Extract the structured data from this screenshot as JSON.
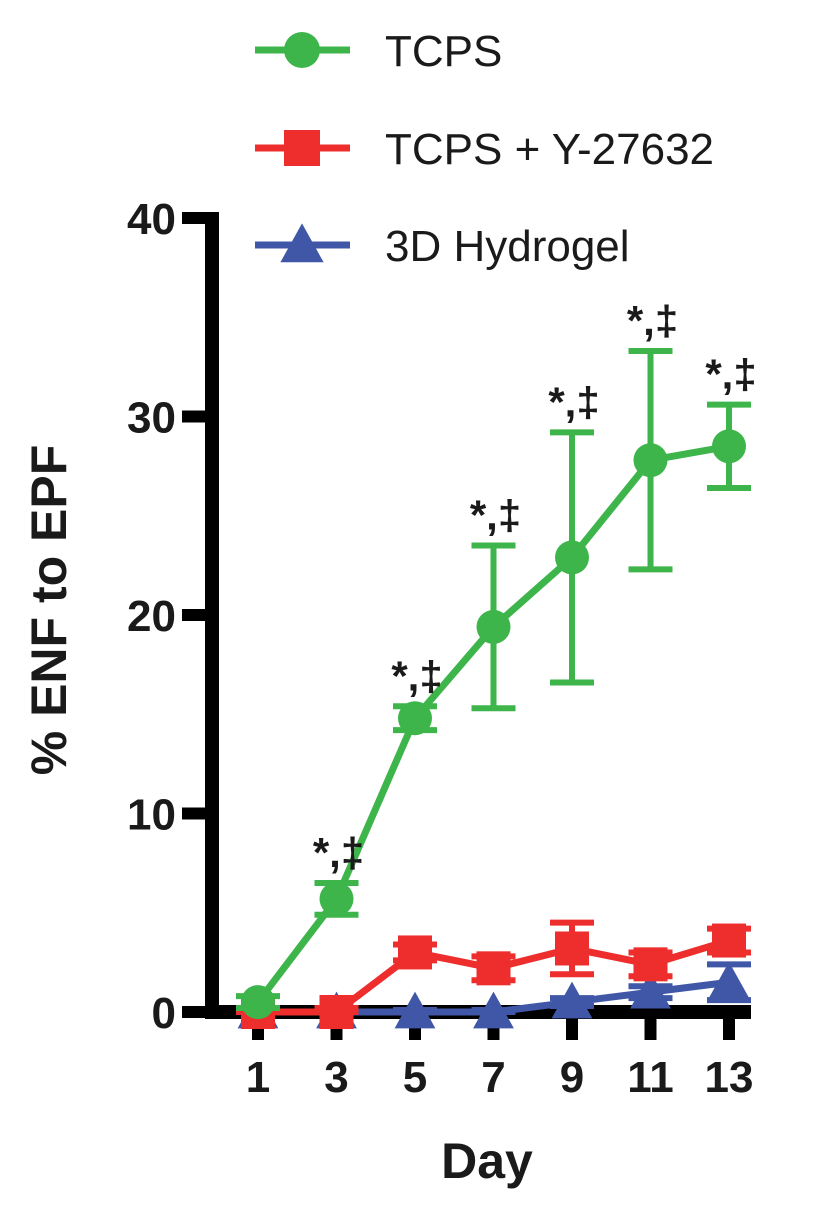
{
  "chart_data": {
    "type": "line",
    "title": "",
    "xlabel": "Day",
    "ylabel": "% ENF to EPF",
    "x": [
      1,
      3,
      5,
      7,
      9,
      11,
      13
    ],
    "x_tick_labels": [
      "1",
      "3",
      "5",
      "7",
      "9",
      "11",
      "13"
    ],
    "ylim": [
      0,
      40
    ],
    "y_ticks": [
      0,
      10,
      20,
      30,
      40
    ],
    "y_tick_labels": [
      "0",
      "10",
      "20",
      "30",
      "40"
    ],
    "grid": false,
    "legend_position": "top",
    "series": [
      {
        "name": "TCPS",
        "color": "#3db54a",
        "marker": "circle",
        "values": [
          0.5,
          5.7,
          14.8,
          19.4,
          22.9,
          27.8,
          28.5
        ],
        "error": [
          0.3,
          0.8,
          0.6,
          4.1,
          6.3,
          5.5,
          2.1
        ]
      },
      {
        "name": "TCPS + Y-27632",
        "color": "#ee2d2d",
        "marker": "square",
        "values": [
          0.0,
          0.0,
          3.0,
          2.2,
          3.2,
          2.4,
          3.6
        ],
        "error": [
          0.2,
          0.2,
          0.4,
          0.6,
          1.3,
          0.6,
          0.6
        ]
      },
      {
        "name": "3D Hydrogel",
        "color": "#3f57a6",
        "marker": "triangle",
        "values": [
          0.0,
          0.0,
          0.0,
          0.0,
          0.5,
          1.0,
          1.5
        ],
        "error": [
          0.1,
          0.1,
          0.1,
          0.1,
          0.2,
          0.3,
          0.9
        ]
      }
    ],
    "annotations": [
      {
        "x": 3,
        "y": 6.5,
        "text": "*,‡"
      },
      {
        "x": 5,
        "y": 15.4,
        "text": "*,‡"
      },
      {
        "x": 7,
        "y": 23.5,
        "text": "*,‡"
      },
      {
        "x": 9,
        "y": 29.2,
        "text": "*,‡"
      },
      {
        "x": 11,
        "y": 33.3,
        "text": "*,‡"
      },
      {
        "x": 13,
        "y": 30.6,
        "text": "*,‡"
      }
    ]
  }
}
